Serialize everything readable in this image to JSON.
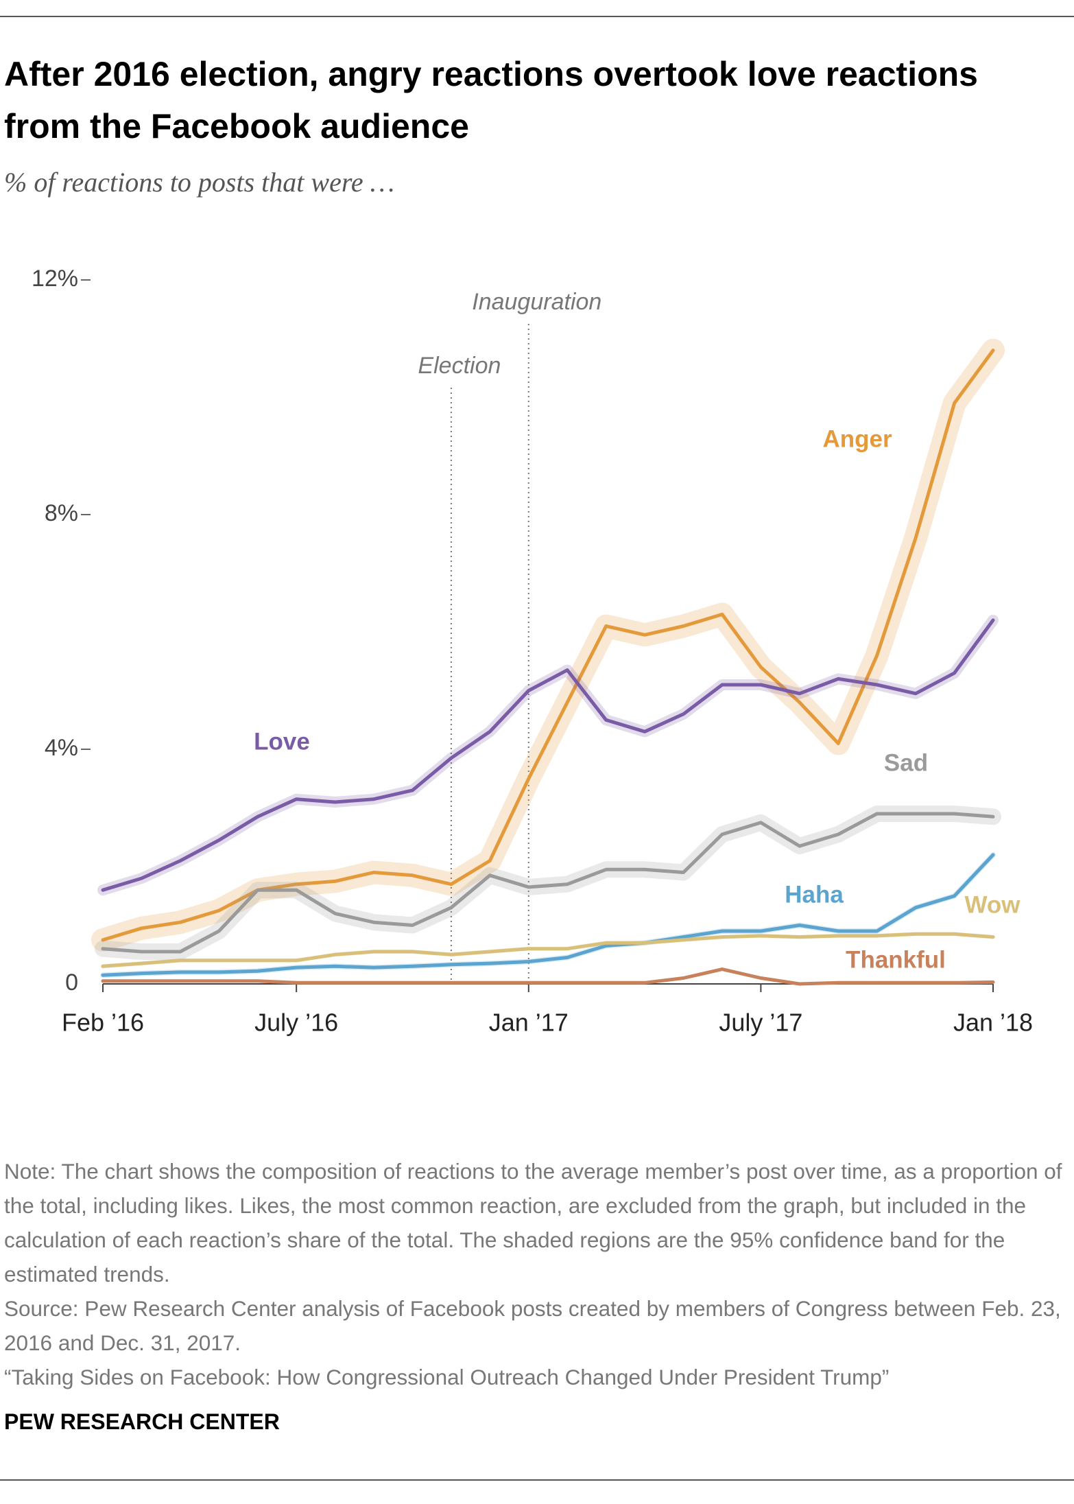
{
  "chart_data": {
    "type": "line",
    "title": "After 2016 election, angry reactions overtook love reactions from the Facebook audience",
    "subtitle": "% of reactions to posts that were …",
    "x": [
      "2016-02",
      "2016-03",
      "2016-04",
      "2016-05",
      "2016-06",
      "2016-07",
      "2016-08",
      "2016-09",
      "2016-10",
      "2016-11",
      "2016-12",
      "2017-01",
      "2017-02",
      "2017-03",
      "2017-04",
      "2017-05",
      "2017-06",
      "2017-07",
      "2017-08",
      "2017-09",
      "2017-10",
      "2017-11",
      "2017-12",
      "2018-01"
    ],
    "xlim": [
      "2016-02",
      "2018-01"
    ],
    "xticks": [
      {
        "value": "2016-02",
        "label": "Feb ’16"
      },
      {
        "value": "2016-07",
        "label": "July ’16"
      },
      {
        "value": "2017-01",
        "label": "Jan ’17"
      },
      {
        "value": "2017-07",
        "label": "July ’17"
      },
      {
        "value": "2018-01",
        "label": "Jan ’18"
      }
    ],
    "ylim": [
      0,
      12
    ],
    "yticks": [
      0,
      {
        "value": 4,
        "label": "4%"
      },
      {
        "value": 8,
        "label": "8%"
      },
      {
        "value": 12,
        "label": "12%"
      }
    ],
    "grid": false,
    "series": [
      {
        "name": "Anger",
        "color": "#e49a3a",
        "values": [
          0.75,
          0.95,
          1.05,
          1.25,
          1.6,
          1.7,
          1.75,
          1.9,
          1.85,
          1.7,
          2.1,
          3.5,
          4.8,
          6.1,
          5.95,
          6.1,
          6.3,
          5.4,
          4.8,
          4.1,
          5.6,
          7.6,
          9.9,
          10.8
        ]
      },
      {
        "name": "Love",
        "color": "#7a5ca6",
        "values": [
          1.6,
          1.8,
          2.1,
          2.45,
          2.85,
          3.15,
          3.1,
          3.15,
          3.3,
          3.85,
          4.3,
          5.0,
          5.35,
          4.5,
          4.3,
          4.6,
          5.1,
          5.1,
          4.95,
          5.2,
          5.1,
          4.95,
          5.3,
          6.2
        ]
      },
      {
        "name": "Sad",
        "color": "#9a9a9a",
        "values": [
          0.6,
          0.55,
          0.55,
          0.9,
          1.6,
          1.6,
          1.2,
          1.05,
          1.0,
          1.3,
          1.85,
          1.65,
          1.7,
          1.95,
          1.95,
          1.9,
          2.55,
          2.75,
          2.35,
          2.55,
          2.9,
          2.9,
          2.9,
          2.85
        ]
      },
      {
        "name": "Haha",
        "color": "#5ba4cf",
        "values": [
          0.15,
          0.18,
          0.2,
          0.2,
          0.22,
          0.28,
          0.3,
          0.28,
          0.3,
          0.33,
          0.35,
          0.38,
          0.45,
          0.65,
          0.7,
          0.8,
          0.9,
          0.9,
          1.0,
          0.9,
          0.9,
          1.3,
          1.5,
          2.2
        ]
      },
      {
        "name": "Wow",
        "color": "#d8c07a",
        "values": [
          0.3,
          0.35,
          0.4,
          0.4,
          0.4,
          0.4,
          0.5,
          0.55,
          0.55,
          0.5,
          0.55,
          0.6,
          0.6,
          0.7,
          0.7,
          0.75,
          0.8,
          0.82,
          0.8,
          0.82,
          0.82,
          0.85,
          0.85,
          0.8
        ]
      },
      {
        "name": "Thankful",
        "color": "#c8815a",
        "values": [
          0.05,
          0.05,
          0.05,
          0.05,
          0.05,
          0.02,
          0.02,
          0.02,
          0.02,
          0.02,
          0.02,
          0.02,
          0.02,
          0.02,
          0.02,
          0.1,
          0.25,
          0.1,
          0,
          0.02,
          0.02,
          0.02,
          0.02,
          0.03
        ]
      }
    ],
    "annotations": [
      {
        "label": "Election",
        "x": "2016-11"
      },
      {
        "label": "Inauguration",
        "x": "2017-01"
      }
    ],
    "note": "Note: The chart shows the composition of reactions to the average member’s post over time, as a proportion of the total, including likes. Likes, the most common reaction, are excluded from the graph, but included in the calculation of each reaction’s share of the total. The shaded regions are the 95% confidence band for the estimated trends.",
    "source": "Source: Pew Research Center analysis of Facebook posts created by members of Congress between Feb. 23, 2016 and Dec. 31, 2017.",
    "citation": "“Taking Sides on Facebook: How Congressional Outreach Changed Under President Trump”",
    "footer": "PEW RESEARCH CENTER"
  }
}
